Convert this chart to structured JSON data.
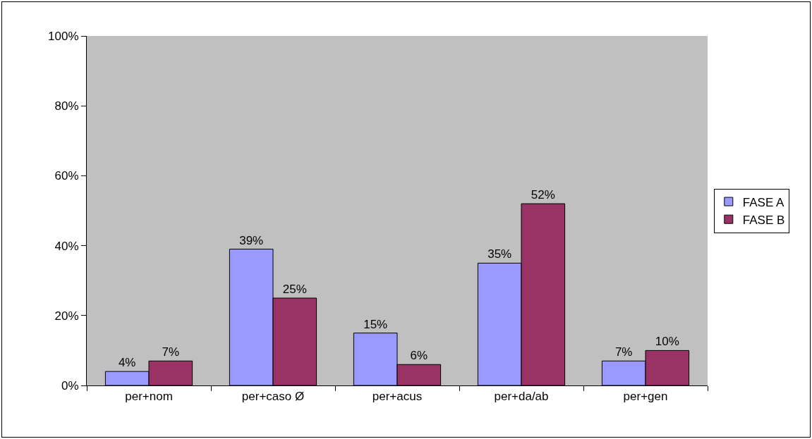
{
  "chart_data": {
    "type": "bar",
    "categories": [
      "per+nom",
      "per+caso Ø",
      "per+acus",
      "per+da/ab",
      "per+gen"
    ],
    "series": [
      {
        "name": "FASE A",
        "color": "#9999ff",
        "values": [
          4,
          39,
          15,
          35,
          7
        ],
        "value_labels": [
          "4%",
          "39%",
          "15%",
          "35%",
          "7%"
        ]
      },
      {
        "name": "FASE B",
        "color": "#993366",
        "values": [
          7,
          25,
          6,
          52,
          10
        ],
        "value_labels": [
          "7%",
          "25%",
          "6%",
          "52%",
          "10%"
        ]
      }
    ],
    "ylim": [
      0,
      100
    ],
    "yticks": [
      {
        "value": 0,
        "label": "0%"
      },
      {
        "value": 20,
        "label": "20%"
      },
      {
        "value": 40,
        "label": "40%"
      },
      {
        "value": 60,
        "label": "60%"
      },
      {
        "value": 80,
        "label": "80%"
      },
      {
        "value": 100,
        "label": "100%"
      }
    ],
    "grid": false,
    "legend": "right"
  }
}
